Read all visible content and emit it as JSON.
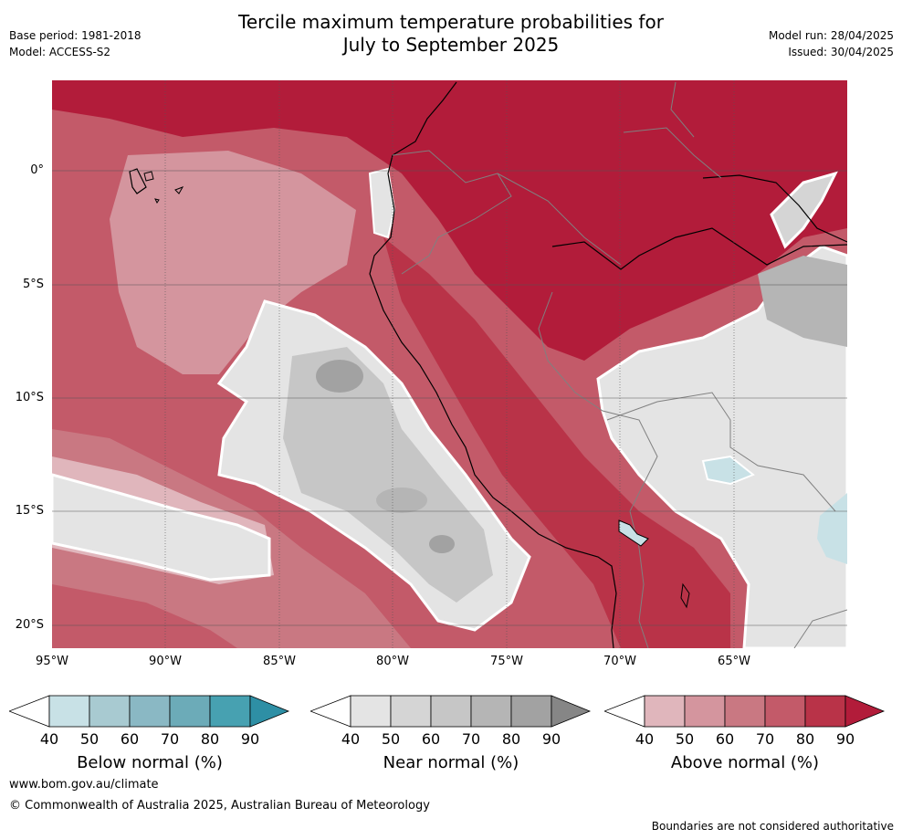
{
  "title_lines": [
    "Tercile maximum temperature probabilities for",
    "July to September 2025"
  ],
  "meta_left": [
    "Base period: 1981-2018",
    "Model: ACCESS-S2"
  ],
  "meta_right": [
    "Model run: 28/04/2025",
    "Issued: 30/04/2025"
  ],
  "lat_labels": [
    "0°",
    "5°S",
    "10°S",
    "15°S",
    "20°S"
  ],
  "lon_labels": [
    "95°W",
    "90°W",
    "85°W",
    "80°W",
    "75°W",
    "70°W",
    "65°W"
  ],
  "colorbars": [
    {
      "title": "Below normal (%)",
      "ticks": [
        "40",
        "50",
        "60",
        "70",
        "80",
        "90"
      ],
      "colors": [
        "#ffffff",
        "#c8e1e6",
        "#a8cad1",
        "#8ab8c4",
        "#6cabb8",
        "#47a1b1",
        "#2e8fa5"
      ]
    },
    {
      "title": "Near normal (%)",
      "ticks": [
        "40",
        "50",
        "60",
        "70",
        "80",
        "90"
      ],
      "colors": [
        "#ffffff",
        "#e4e4e4",
        "#d5d5d5",
        "#c6c6c6",
        "#b5b5b5",
        "#a2a2a2",
        "#868686"
      ]
    },
    {
      "title": "Above normal (%)",
      "ticks": [
        "40",
        "50",
        "60",
        "70",
        "80",
        "90"
      ],
      "colors": [
        "#ffffff",
        "#e0b6bc",
        "#d4959e",
        "#c97882",
        "#c35a69",
        "#b93348",
        "#b21c3a"
      ]
    }
  ],
  "footer": {
    "url": "www.bom.gov.au/climate",
    "copyright": "© Commonwealth of Australia 2025, Australian Bureau of Meteorology",
    "note": "Boundaries are not considered authoritative"
  }
}
